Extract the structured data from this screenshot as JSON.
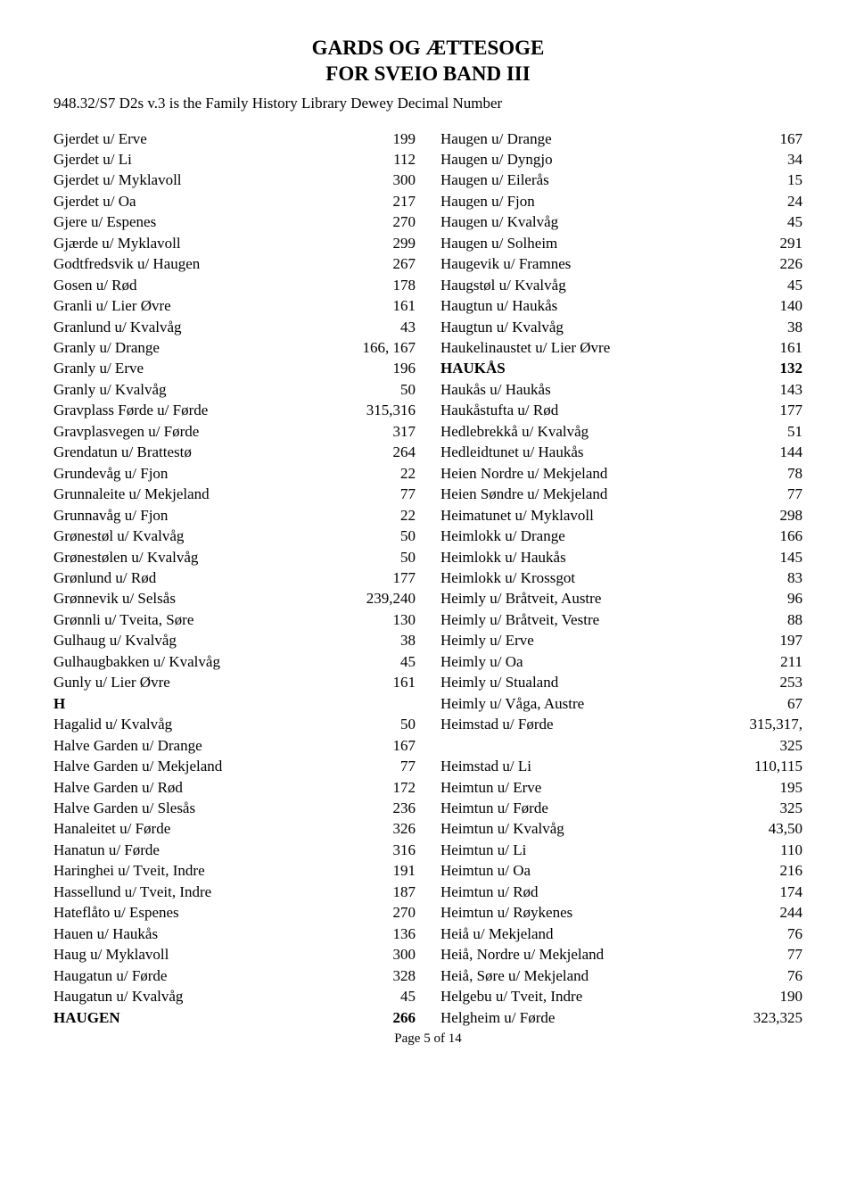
{
  "title_line1": "GARDS OG ÆTTESOGE",
  "title_line2": "FOR  SVEIO  BAND III",
  "sub_line": "948.32/S7 D2s v.3 is the Family History Library Dewey Decimal Number",
  "footer": "Page 5 of 14",
  "left": [
    {
      "name": "Gjerdet u/ Erve",
      "page": "199"
    },
    {
      "name": "Gjerdet u/ Li",
      "page": "112"
    },
    {
      "name": "Gjerdet u/ Myklavoll",
      "page": "300"
    },
    {
      "name": "Gjerdet u/ Oa",
      "page": "217"
    },
    {
      "name": "Gjere u/ Espenes",
      "page": "270"
    },
    {
      "name": "Gjærde u/ Myklavoll",
      "page": "299"
    },
    {
      "name": "Godtfredsvik u/ Haugen",
      "page": "267"
    },
    {
      "name": "Gosen u/ Rød",
      "page": "178"
    },
    {
      "name": "Granli u/ Lier Øvre",
      "page": "161"
    },
    {
      "name": "Granlund u/ Kvalvåg",
      "page": "43"
    },
    {
      "name": "Granly u/ Drange",
      "page": "166, 167"
    },
    {
      "name": "Granly u/ Erve",
      "page": "196"
    },
    {
      "name": "Granly u/ Kvalvåg",
      "page": "50"
    },
    {
      "name": "Gravplass Førde u/ Førde",
      "page": "315,316"
    },
    {
      "name": "Gravplasvegen u/ Førde",
      "page": "317"
    },
    {
      "name": "Grendatun u/ Brattestø",
      "page": "264"
    },
    {
      "name": "Grundevåg u/ Fjon",
      "page": "22"
    },
    {
      "name": "Grunnaleite u/ Mekjeland",
      "page": "77"
    },
    {
      "name": "Grunnavåg u/ Fjon",
      "page": "22"
    },
    {
      "name": "Grønestøl u/ Kvalvåg",
      "page": "50"
    },
    {
      "name": "Grønestølen u/ Kvalvåg",
      "page": "50"
    },
    {
      "name": "Grønlund u/ Rød",
      "page": "177"
    },
    {
      "name": "Grønnevik u/ Selsås",
      "page": "239,240"
    },
    {
      "name": "Grønnli u/ Tveita, Søre",
      "page": "130"
    },
    {
      "name": "Gulhaug u/ Kvalvåg",
      "page": "38"
    },
    {
      "name": "Gulhaugbakken u/ Kvalvåg",
      "page": "45"
    },
    {
      "name": "Gunly u/ Lier Øvre",
      "page": "161"
    },
    {
      "name": "H",
      "page": "",
      "section": true
    },
    {
      "name": "Hagalid u/ Kvalvåg",
      "page": "50"
    },
    {
      "name": "Halve Garden u/ Drange",
      "page": "167"
    },
    {
      "name": "Halve Garden u/ Mekjeland",
      "page": "77"
    },
    {
      "name": "Halve Garden u/ Rød",
      "page": "172"
    },
    {
      "name": "Halve Garden u/ Slesås",
      "page": "236"
    },
    {
      "name": "Hanaleitet u/ Førde",
      "page": "326"
    },
    {
      "name": "Hanatun u/ Førde",
      "page": "316"
    },
    {
      "name": "Haringhei u/ Tveit, Indre",
      "page": "191"
    },
    {
      "name": "Hassellund u/ Tveit, Indre",
      "page": "187"
    },
    {
      "name": "Hateflåto u/ Espenes",
      "page": "270"
    },
    {
      "name": "Hauen u/ Haukås",
      "page": "136"
    },
    {
      "name": "Haug u/ Myklavoll",
      "page": "300"
    },
    {
      "name": "Haugatun u/ Førde",
      "page": "328"
    },
    {
      "name": "Haugatun u/ Kvalvåg",
      "page": "45"
    },
    {
      "name": "HAUGEN",
      "page": "266",
      "bold": true
    }
  ],
  "right": [
    {
      "name": "Haugen u/ Drange",
      "page": "167"
    },
    {
      "name": "Haugen u/ Dyngjo",
      "page": "34"
    },
    {
      "name": "Haugen u/ Eilerås",
      "page": "15"
    },
    {
      "name": "Haugen u/ Fjon",
      "page": "24"
    },
    {
      "name": "Haugen u/ Kvalvåg",
      "page": "45"
    },
    {
      "name": "Haugen u/ Solheim",
      "page": "291"
    },
    {
      "name": "Haugevik u/ Framnes",
      "page": "226"
    },
    {
      "name": "Haugstøl u/ Kvalvåg",
      "page": "45"
    },
    {
      "name": "Haugtun u/ Haukås",
      "page": "140"
    },
    {
      "name": "Haugtun u/ Kvalvåg",
      "page": "38"
    },
    {
      "name": "Haukelinaustet u/ Lier Øvre",
      "page": "161"
    },
    {
      "name": "HAUKÅS",
      "page": "132",
      "bold": true
    },
    {
      "name": "Haukås u/ Haukås",
      "page": "143"
    },
    {
      "name": "Haukåstufta u/ Rød",
      "page": "177"
    },
    {
      "name": "Hedlebrekkå u/ Kvalvåg",
      "page": "51"
    },
    {
      "name": "Hedleidtunet u/ Haukås",
      "page": "144"
    },
    {
      "name": "Heien Nordre u/ Mekjeland",
      "page": "78"
    },
    {
      "name": "Heien Søndre u/ Mekjeland",
      "page": "77"
    },
    {
      "name": "Heimatunet u/ Myklavoll",
      "page": "298"
    },
    {
      "name": "Heimlokk u/ Drange",
      "page": "166"
    },
    {
      "name": "Heimlokk u/ Haukås",
      "page": "145"
    },
    {
      "name": "Heimlokk u/ Krossgot",
      "page": "83"
    },
    {
      "name": "Heimly u/ Bråtveit, Austre",
      "page": "96"
    },
    {
      "name": "Heimly u/ Bråtveit, Vestre",
      "page": "88"
    },
    {
      "name": "Heimly u/ Erve",
      "page": "197"
    },
    {
      "name": "Heimly u/ Oa",
      "page": "211"
    },
    {
      "name": "Heimly u/ Stualand",
      "page": "253"
    },
    {
      "name": "Heimly u/ Våga, Austre",
      "page": "67"
    },
    {
      "name": "Heimstad u/ Førde",
      "page": "315,317,"
    },
    {
      "name": "",
      "page": "325"
    },
    {
      "name": "Heimstad u/ Li",
      "page": "110,115"
    },
    {
      "name": "Heimtun u/ Erve",
      "page": "195"
    },
    {
      "name": "Heimtun u/ Førde",
      "page": "325"
    },
    {
      "name": "Heimtun u/ Kvalvåg",
      "page": "43,50"
    },
    {
      "name": "Heimtun u/ Li",
      "page": "110"
    },
    {
      "name": "Heimtun u/ Oa",
      "page": "216"
    },
    {
      "name": "Heimtun u/ Rød",
      "page": "174"
    },
    {
      "name": "Heimtun u/ Røykenes",
      "page": "244"
    },
    {
      "name": "Heiå u/ Mekjeland",
      "page": "76"
    },
    {
      "name": "Heiå, Nordre u/ Mekjeland",
      "page": "77"
    },
    {
      "name": "Heiå, Søre u/ Mekjeland",
      "page": "76"
    },
    {
      "name": "Helgebu u/ Tveit, Indre",
      "page": "190"
    },
    {
      "name": "Helgheim u/ Førde",
      "page": "323,325"
    }
  ]
}
